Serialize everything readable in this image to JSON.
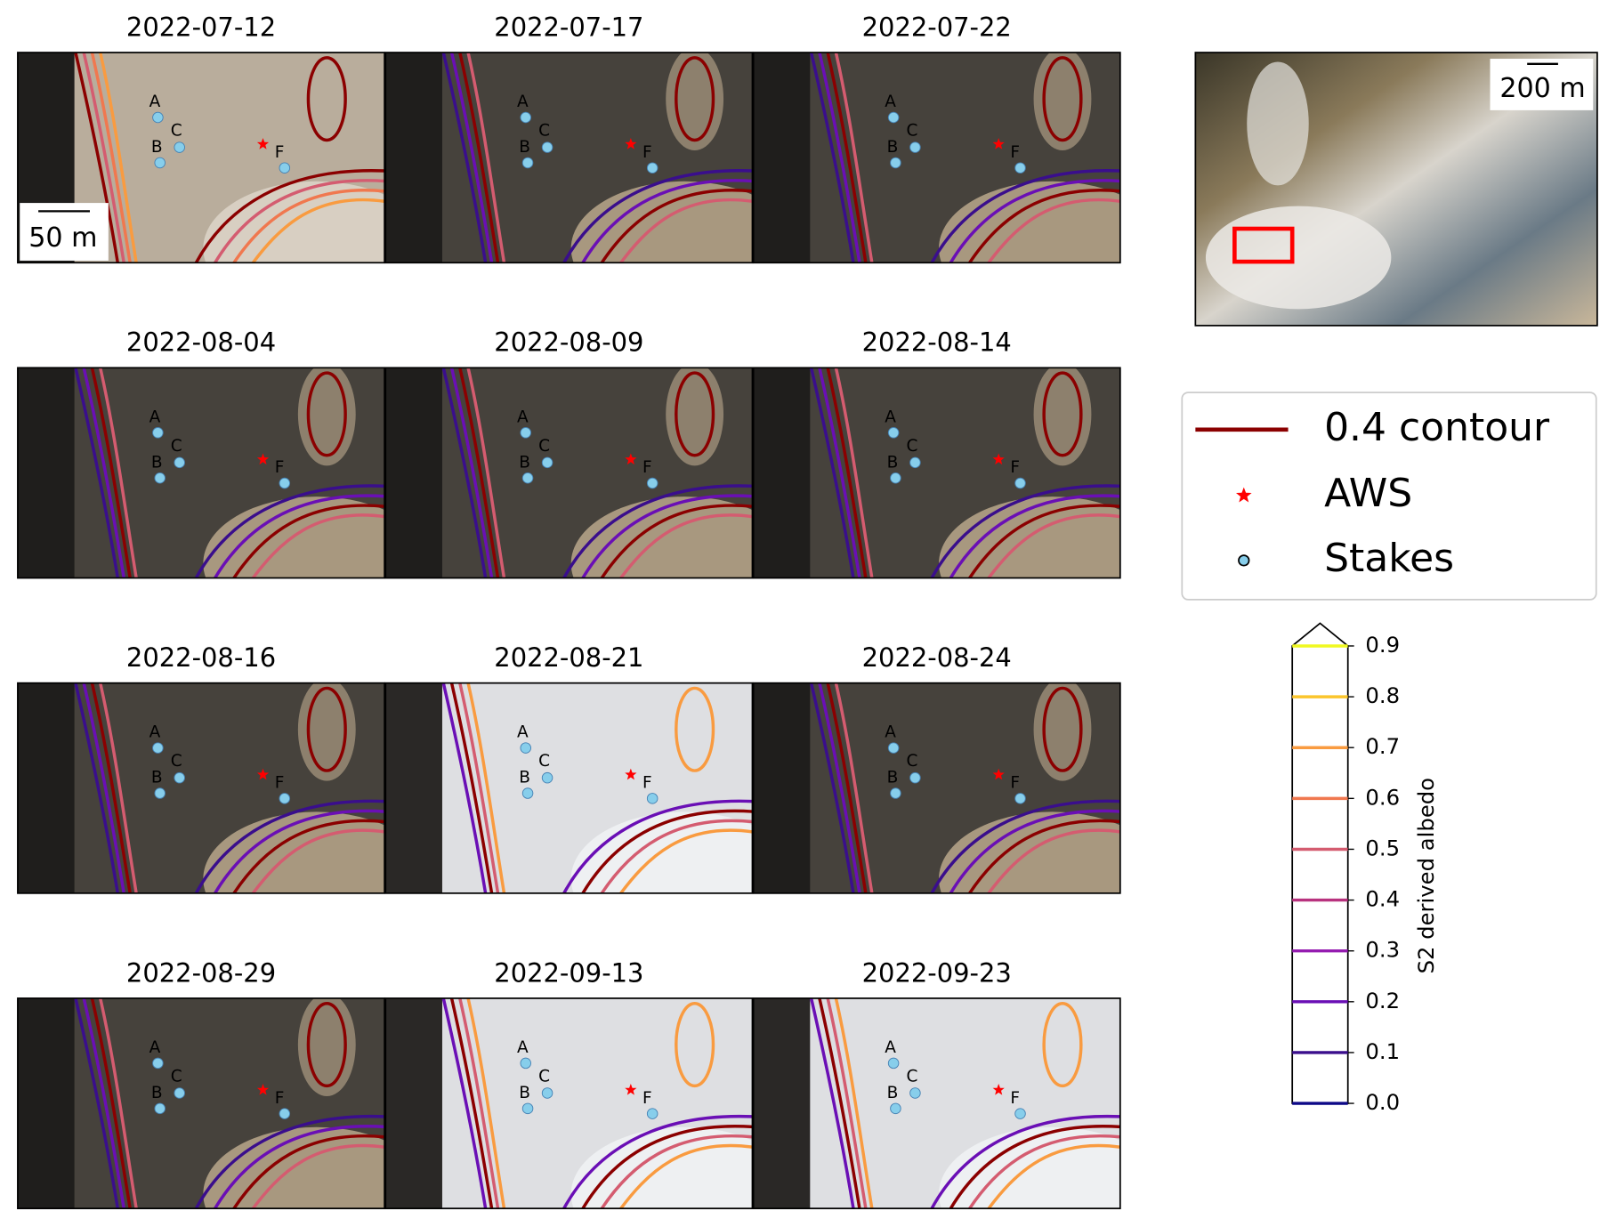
{
  "panels": [
    {
      "title": "2022-07-12"
    },
    {
      "title": "2022-07-17"
    },
    {
      "title": "2022-07-22"
    },
    {
      "title": "2022-08-04"
    },
    {
      "title": "2022-08-09"
    },
    {
      "title": "2022-08-14"
    },
    {
      "title": "2022-08-16"
    },
    {
      "title": "2022-08-21"
    },
    {
      "title": "2022-08-24"
    },
    {
      "title": "2022-08-29"
    },
    {
      "title": "2022-09-13"
    },
    {
      "title": "2022-09-23"
    }
  ],
  "point_labels": [
    "A",
    "B",
    "C",
    "F"
  ],
  "scale_bar": "50 m",
  "overview": {
    "scale_bar": "200 m"
  },
  "legend": {
    "contour": "0.4 contour",
    "aws": "AWS",
    "stakes": "Stakes",
    "contour_color": "#8b0000",
    "aws_color": "#ff0000",
    "stake_color": "#87ceeb"
  },
  "colorbar": {
    "label": "S2 derived albedo",
    "lim": [
      0,
      0.9
    ],
    "ticks": [
      {
        "value": 0,
        "label": "0.0"
      },
      0.1,
      0.2,
      0.3,
      0.4,
      0.5,
      0.6,
      0.7,
      0.8,
      0.9
    ],
    "colors": [
      "#0d0887",
      "#3a0e8c",
      "#6a0fb5",
      "#951cb0",
      "#b8327e",
      "#d45c70",
      "#f0784f",
      "#f99b40",
      "#fbc52c",
      "#f0f921"
    ]
  }
}
